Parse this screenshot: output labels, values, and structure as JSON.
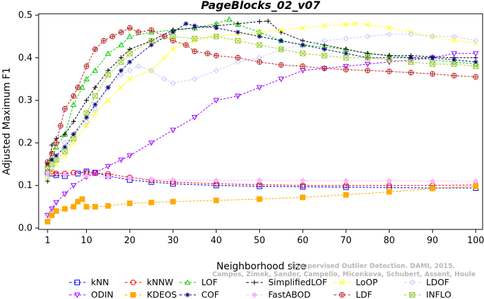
{
  "chart_data": {
    "type": "line",
    "title": "PageBlocks_02_v07",
    "xlabel": "Neighborhood size",
    "ylabel": "Adjusted Maximum F1",
    "xlim": [
      1,
      100
    ],
    "ylim": [
      0,
      0.5
    ],
    "x_ticks": [
      1,
      10,
      20,
      30,
      40,
      50,
      60,
      70,
      80,
      90,
      100
    ],
    "y_ticks": [
      0.0,
      0.1,
      0.2,
      0.3,
      0.4,
      0.5
    ],
    "grid": false,
    "legend_placement": "bottom",
    "credit": [
      "Campos, Zimek, Sander, Campello, Micenkova, Schubert, Assent, Houle",
      "Unsupervised Outlier Detection. DAMI, 2015."
    ],
    "series": [
      {
        "name": "kNN",
        "color": "#0000ff",
        "marker": "square",
        "points": [
          [
            1,
            0.13
          ],
          [
            2,
            0.128
          ],
          [
            3,
            0.124
          ],
          [
            5,
            0.122
          ],
          [
            8,
            0.128
          ],
          [
            10,
            0.133
          ],
          [
            12,
            0.13
          ],
          [
            15,
            0.122
          ],
          [
            20,
            0.113
          ],
          [
            25,
            0.108
          ],
          [
            30,
            0.104
          ],
          [
            40,
            0.1
          ],
          [
            50,
            0.098
          ],
          [
            60,
            0.097
          ],
          [
            70,
            0.096
          ],
          [
            80,
            0.095
          ],
          [
            90,
            0.094
          ],
          [
            100,
            0.094
          ]
        ]
      },
      {
        "name": "kNNW",
        "color": "#ff0000",
        "marker": "circle",
        "points": [
          [
            1,
            0.14
          ],
          [
            2,
            0.132
          ],
          [
            3,
            0.128
          ],
          [
            5,
            0.128
          ],
          [
            7,
            0.13
          ],
          [
            10,
            0.13
          ],
          [
            12,
            0.129
          ],
          [
            15,
            0.127
          ],
          [
            20,
            0.119
          ],
          [
            25,
            0.112
          ],
          [
            30,
            0.108
          ],
          [
            40,
            0.104
          ],
          [
            50,
            0.102
          ],
          [
            60,
            0.1
          ],
          [
            70,
            0.1
          ],
          [
            80,
            0.1
          ],
          [
            90,
            0.1
          ],
          [
            100,
            0.101
          ]
        ]
      },
      {
        "name": "LOF",
        "color": "#00cc00",
        "marker": "triangle-up",
        "points": [
          [
            1,
            0.15
          ],
          [
            2,
            0.16
          ],
          [
            3,
            0.19
          ],
          [
            5,
            0.22
          ],
          [
            7,
            0.29
          ],
          [
            9,
            0.33
          ],
          [
            10,
            0.35
          ],
          [
            12,
            0.37
          ],
          [
            15,
            0.41
          ],
          [
            18,
            0.43
          ],
          [
            20,
            0.45
          ],
          [
            25,
            0.46
          ],
          [
            30,
            0.465
          ],
          [
            35,
            0.47
          ],
          [
            40,
            0.48
          ],
          [
            43,
            0.49
          ],
          [
            45,
            0.478
          ],
          [
            50,
            0.46
          ],
          [
            55,
            0.44
          ],
          [
            60,
            0.43
          ],
          [
            65,
            0.425
          ],
          [
            70,
            0.42
          ],
          [
            75,
            0.41
          ],
          [
            80,
            0.405
          ],
          [
            85,
            0.4
          ],
          [
            90,
            0.395
          ],
          [
            95,
            0.39
          ],
          [
            100,
            0.385
          ]
        ]
      },
      {
        "name": "SimplifiedLOF",
        "color": "#000000",
        "marker": "plus",
        "points": [
          [
            1,
            0.11
          ],
          [
            2,
            0.195
          ],
          [
            3,
            0.21
          ],
          [
            5,
            0.22
          ],
          [
            7,
            0.25
          ],
          [
            10,
            0.3
          ],
          [
            12,
            0.33
          ],
          [
            15,
            0.37
          ],
          [
            18,
            0.4
          ],
          [
            20,
            0.42
          ],
          [
            25,
            0.44
          ],
          [
            30,
            0.465
          ],
          [
            35,
            0.47
          ],
          [
            40,
            0.475
          ],
          [
            45,
            0.48
          ],
          [
            50,
            0.485
          ],
          [
            52,
            0.486
          ],
          [
            55,
            0.46
          ],
          [
            60,
            0.44
          ],
          [
            65,
            0.43
          ],
          [
            70,
            0.42
          ],
          [
            75,
            0.41
          ],
          [
            80,
            0.405
          ],
          [
            85,
            0.405
          ],
          [
            90,
            0.402
          ],
          [
            95,
            0.4
          ],
          [
            100,
            0.4
          ]
        ]
      },
      {
        "name": "LoOP",
        "color": "#ffff00",
        "marker": "cross",
        "points": [
          [
            1,
            0.12
          ],
          [
            2,
            0.13
          ],
          [
            3,
            0.15
          ],
          [
            5,
            0.17
          ],
          [
            7,
            0.2
          ],
          [
            10,
            0.24
          ],
          [
            12,
            0.27
          ],
          [
            15,
            0.3
          ],
          [
            18,
            0.33
          ],
          [
            20,
            0.35
          ],
          [
            25,
            0.37
          ],
          [
            28,
            0.4
          ],
          [
            30,
            0.42
          ],
          [
            35,
            0.44
          ],
          [
            40,
            0.45
          ],
          [
            45,
            0.455
          ],
          [
            50,
            0.46
          ],
          [
            55,
            0.465
          ],
          [
            60,
            0.47
          ],
          [
            65,
            0.475
          ],
          [
            70,
            0.478
          ],
          [
            72,
            0.48
          ],
          [
            75,
            0.478
          ],
          [
            80,
            0.47
          ],
          [
            85,
            0.46
          ],
          [
            90,
            0.45
          ],
          [
            95,
            0.44
          ],
          [
            100,
            0.435
          ]
        ]
      },
      {
        "name": "LDOF",
        "color": "#c8c8ff",
        "marker": "diamond",
        "points": [
          [
            1,
            0.12
          ],
          [
            2,
            0.14
          ],
          [
            3,
            0.16
          ],
          [
            5,
            0.2
          ],
          [
            7,
            0.22
          ],
          [
            10,
            0.25
          ],
          [
            12,
            0.28
          ],
          [
            15,
            0.33
          ],
          [
            18,
            0.36
          ],
          [
            20,
            0.37
          ],
          [
            22,
            0.38
          ],
          [
            25,
            0.37
          ],
          [
            28,
            0.35
          ],
          [
            30,
            0.34
          ],
          [
            35,
            0.35
          ],
          [
            40,
            0.37
          ],
          [
            45,
            0.39
          ],
          [
            50,
            0.4
          ],
          [
            55,
            0.42
          ],
          [
            60,
            0.43
          ],
          [
            65,
            0.44
          ],
          [
            70,
            0.445
          ],
          [
            75,
            0.45
          ],
          [
            80,
            0.455
          ],
          [
            85,
            0.455
          ],
          [
            90,
            0.45
          ],
          [
            95,
            0.45
          ],
          [
            100,
            0.44
          ]
        ]
      },
      {
        "name": "ODIN",
        "color": "#9900ff",
        "marker": "triangle-down",
        "points": [
          [
            1,
            0.03
          ],
          [
            2,
            0.045
          ],
          [
            3,
            0.06
          ],
          [
            5,
            0.08
          ],
          [
            7,
            0.1
          ],
          [
            10,
            0.12
          ],
          [
            12,
            0.13
          ],
          [
            15,
            0.145
          ],
          [
            18,
            0.16
          ],
          [
            20,
            0.17
          ],
          [
            25,
            0.2
          ],
          [
            30,
            0.23
          ],
          [
            35,
            0.26
          ],
          [
            40,
            0.3
          ],
          [
            45,
            0.31
          ],
          [
            50,
            0.33
          ],
          [
            55,
            0.35
          ],
          [
            60,
            0.37
          ],
          [
            65,
            0.375
          ],
          [
            70,
            0.38
          ],
          [
            75,
            0.385
          ],
          [
            80,
            0.39
          ],
          [
            85,
            0.395
          ],
          [
            90,
            0.4
          ],
          [
            95,
            0.41
          ],
          [
            100,
            0.41
          ]
        ]
      },
      {
        "name": "KDEOS",
        "color": "#ffaa00",
        "marker": "square-filled",
        "points": [
          [
            1,
            0.015
          ],
          [
            2,
            0.03
          ],
          [
            3,
            0.04
          ],
          [
            5,
            0.045
          ],
          [
            7,
            0.05
          ],
          [
            8,
            0.062
          ],
          [
            9,
            0.068
          ],
          [
            10,
            0.05
          ],
          [
            12,
            0.05
          ],
          [
            15,
            0.052
          ],
          [
            20,
            0.058
          ],
          [
            25,
            0.06
          ],
          [
            30,
            0.062
          ],
          [
            40,
            0.065
          ],
          [
            50,
            0.068
          ],
          [
            60,
            0.072
          ],
          [
            70,
            0.078
          ],
          [
            80,
            0.085
          ],
          [
            90,
            0.093
          ],
          [
            100,
            0.098
          ]
        ]
      },
      {
        "name": "COF",
        "color": "#000080",
        "marker": "asterisk",
        "points": [
          [
            1,
            0.15
          ],
          [
            2,
            0.16
          ],
          [
            3,
            0.17
          ],
          [
            5,
            0.19
          ],
          [
            7,
            0.22
          ],
          [
            10,
            0.26
          ],
          [
            12,
            0.29
          ],
          [
            15,
            0.33
          ],
          [
            18,
            0.37
          ],
          [
            20,
            0.39
          ],
          [
            25,
            0.43
          ],
          [
            30,
            0.46
          ],
          [
            33,
            0.48
          ],
          [
            35,
            0.475
          ],
          [
            40,
            0.47
          ],
          [
            45,
            0.46
          ],
          [
            50,
            0.45
          ],
          [
            55,
            0.44
          ],
          [
            60,
            0.43
          ],
          [
            65,
            0.42
          ],
          [
            70,
            0.41
          ],
          [
            75,
            0.4
          ],
          [
            80,
            0.4
          ],
          [
            85,
            0.4
          ],
          [
            90,
            0.4
          ],
          [
            95,
            0.395
          ],
          [
            100,
            0.39
          ]
        ]
      },
      {
        "name": "FastABOD",
        "color": "#ffb3ff",
        "marker": "diamond-filled",
        "points": [
          [
            1,
            0.13
          ],
          [
            5,
            0.125
          ],
          [
            10,
            0.123
          ],
          [
            15,
            0.12
          ],
          [
            20,
            0.117
          ],
          [
            25,
            0.115
          ],
          [
            30,
            0.113
          ],
          [
            40,
            0.112
          ],
          [
            50,
            0.112
          ],
          [
            60,
            0.112
          ],
          [
            70,
            0.111
          ],
          [
            80,
            0.111
          ],
          [
            90,
            0.11
          ],
          [
            100,
            0.11
          ]
        ]
      },
      {
        "name": "LDF",
        "color": "#bb2222",
        "marker": "circle-plus",
        "points": [
          [
            1,
            0.155
          ],
          [
            2,
            0.175
          ],
          [
            3,
            0.2
          ],
          [
            4,
            0.24
          ],
          [
            5,
            0.28
          ],
          [
            7,
            0.31
          ],
          [
            8,
            0.33
          ],
          [
            10,
            0.38
          ],
          [
            12,
            0.42
          ],
          [
            14,
            0.44
          ],
          [
            16,
            0.45
          ],
          [
            18,
            0.46
          ],
          [
            20,
            0.47
          ],
          [
            22,
            0.46
          ],
          [
            25,
            0.465
          ],
          [
            28,
            0.45
          ],
          [
            30,
            0.44
          ],
          [
            33,
            0.43
          ],
          [
            35,
            0.415
          ],
          [
            38,
            0.41
          ],
          [
            40,
            0.405
          ],
          [
            45,
            0.4
          ],
          [
            50,
            0.39
          ],
          [
            55,
            0.383
          ],
          [
            60,
            0.38
          ],
          [
            65,
            0.375
          ],
          [
            70,
            0.372
          ],
          [
            75,
            0.37
          ],
          [
            80,
            0.368
          ],
          [
            85,
            0.365
          ],
          [
            90,
            0.362
          ],
          [
            95,
            0.358
          ],
          [
            100,
            0.355
          ]
        ]
      },
      {
        "name": "INFLO",
        "color": "#99cc33",
        "marker": "square-x",
        "points": [
          [
            1,
            0.14
          ],
          [
            2,
            0.15
          ],
          [
            3,
            0.16
          ],
          [
            5,
            0.18
          ],
          [
            7,
            0.21
          ],
          [
            10,
            0.27
          ],
          [
            12,
            0.31
          ],
          [
            15,
            0.36
          ],
          [
            18,
            0.39
          ],
          [
            20,
            0.41
          ],
          [
            25,
            0.44
          ],
          [
            30,
            0.45
          ],
          [
            35,
            0.445
          ],
          [
            40,
            0.45
          ],
          [
            45,
            0.44
          ],
          [
            50,
            0.43
          ],
          [
            55,
            0.42
          ],
          [
            60,
            0.41
          ],
          [
            65,
            0.405
          ],
          [
            70,
            0.4
          ],
          [
            75,
            0.4
          ],
          [
            80,
            0.395
          ],
          [
            85,
            0.39
          ],
          [
            90,
            0.385
          ],
          [
            95,
            0.385
          ],
          [
            100,
            0.38
          ]
        ]
      }
    ]
  }
}
